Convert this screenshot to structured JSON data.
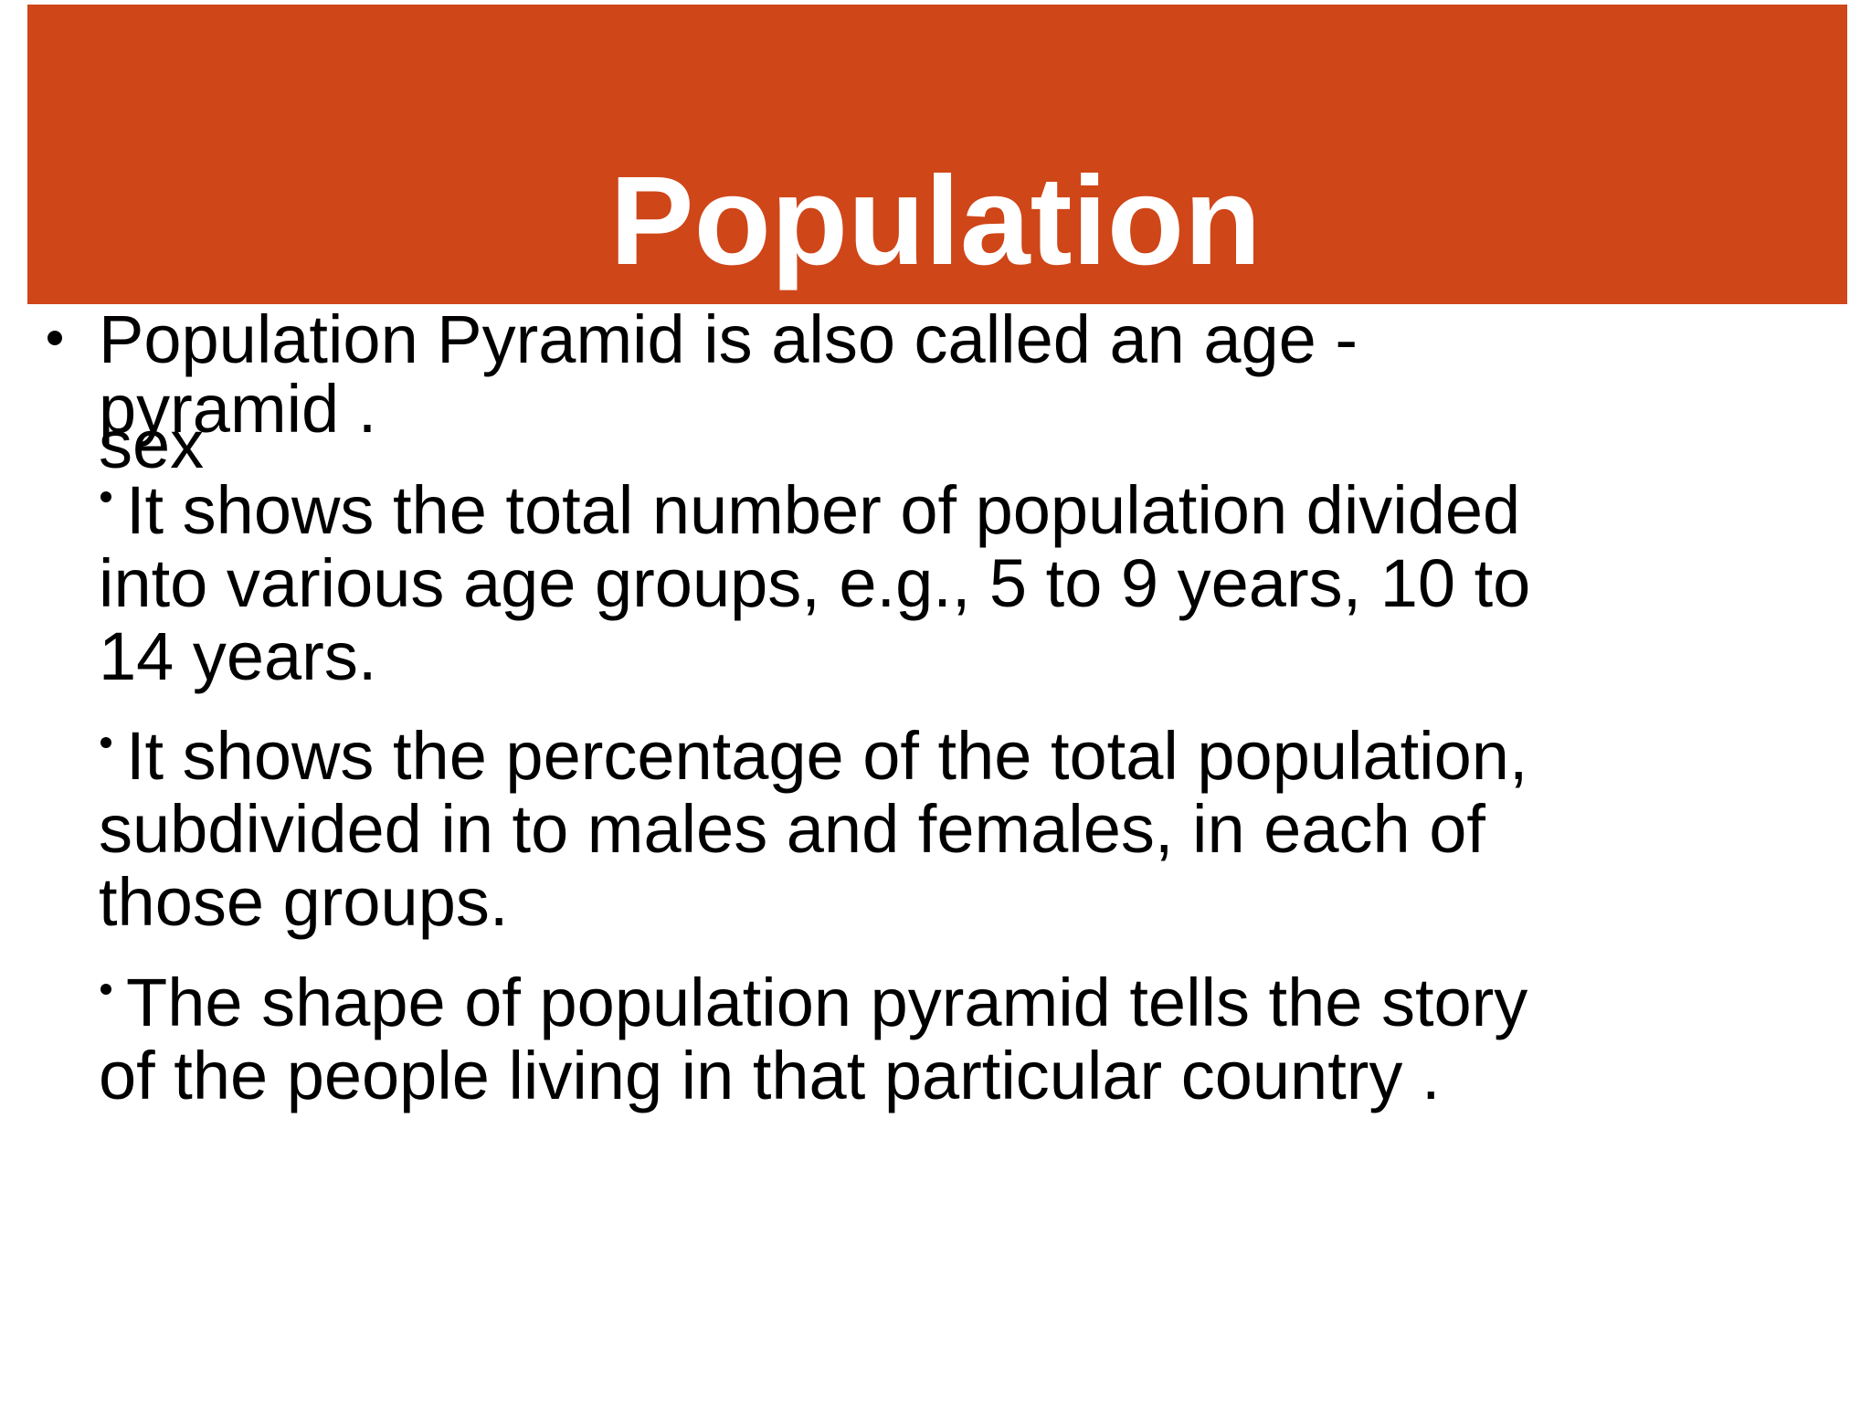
{
  "header": {
    "title": "Population"
  },
  "list": {
    "first_item": {
      "lines": [
        "Population Pyramid is also called an age -",
        "sex"
      ],
      "overlap": "pyramid ."
    },
    "paragraphs": [
      {
        "lines": [
          "It shows the total number of population divided",
          "into various age groups, e.g., 5 to 9 years, 10 to",
          "14 years."
        ]
      },
      {
        "lines": [
          "It shows the percentage of the total population,",
          "subdivided in to males and females, in each of",
          "those groups."
        ]
      },
      {
        "lines": [
          "The shape of population pyramid tells the story",
          "of the people living in that particular country ."
        ]
      }
    ]
  }
}
